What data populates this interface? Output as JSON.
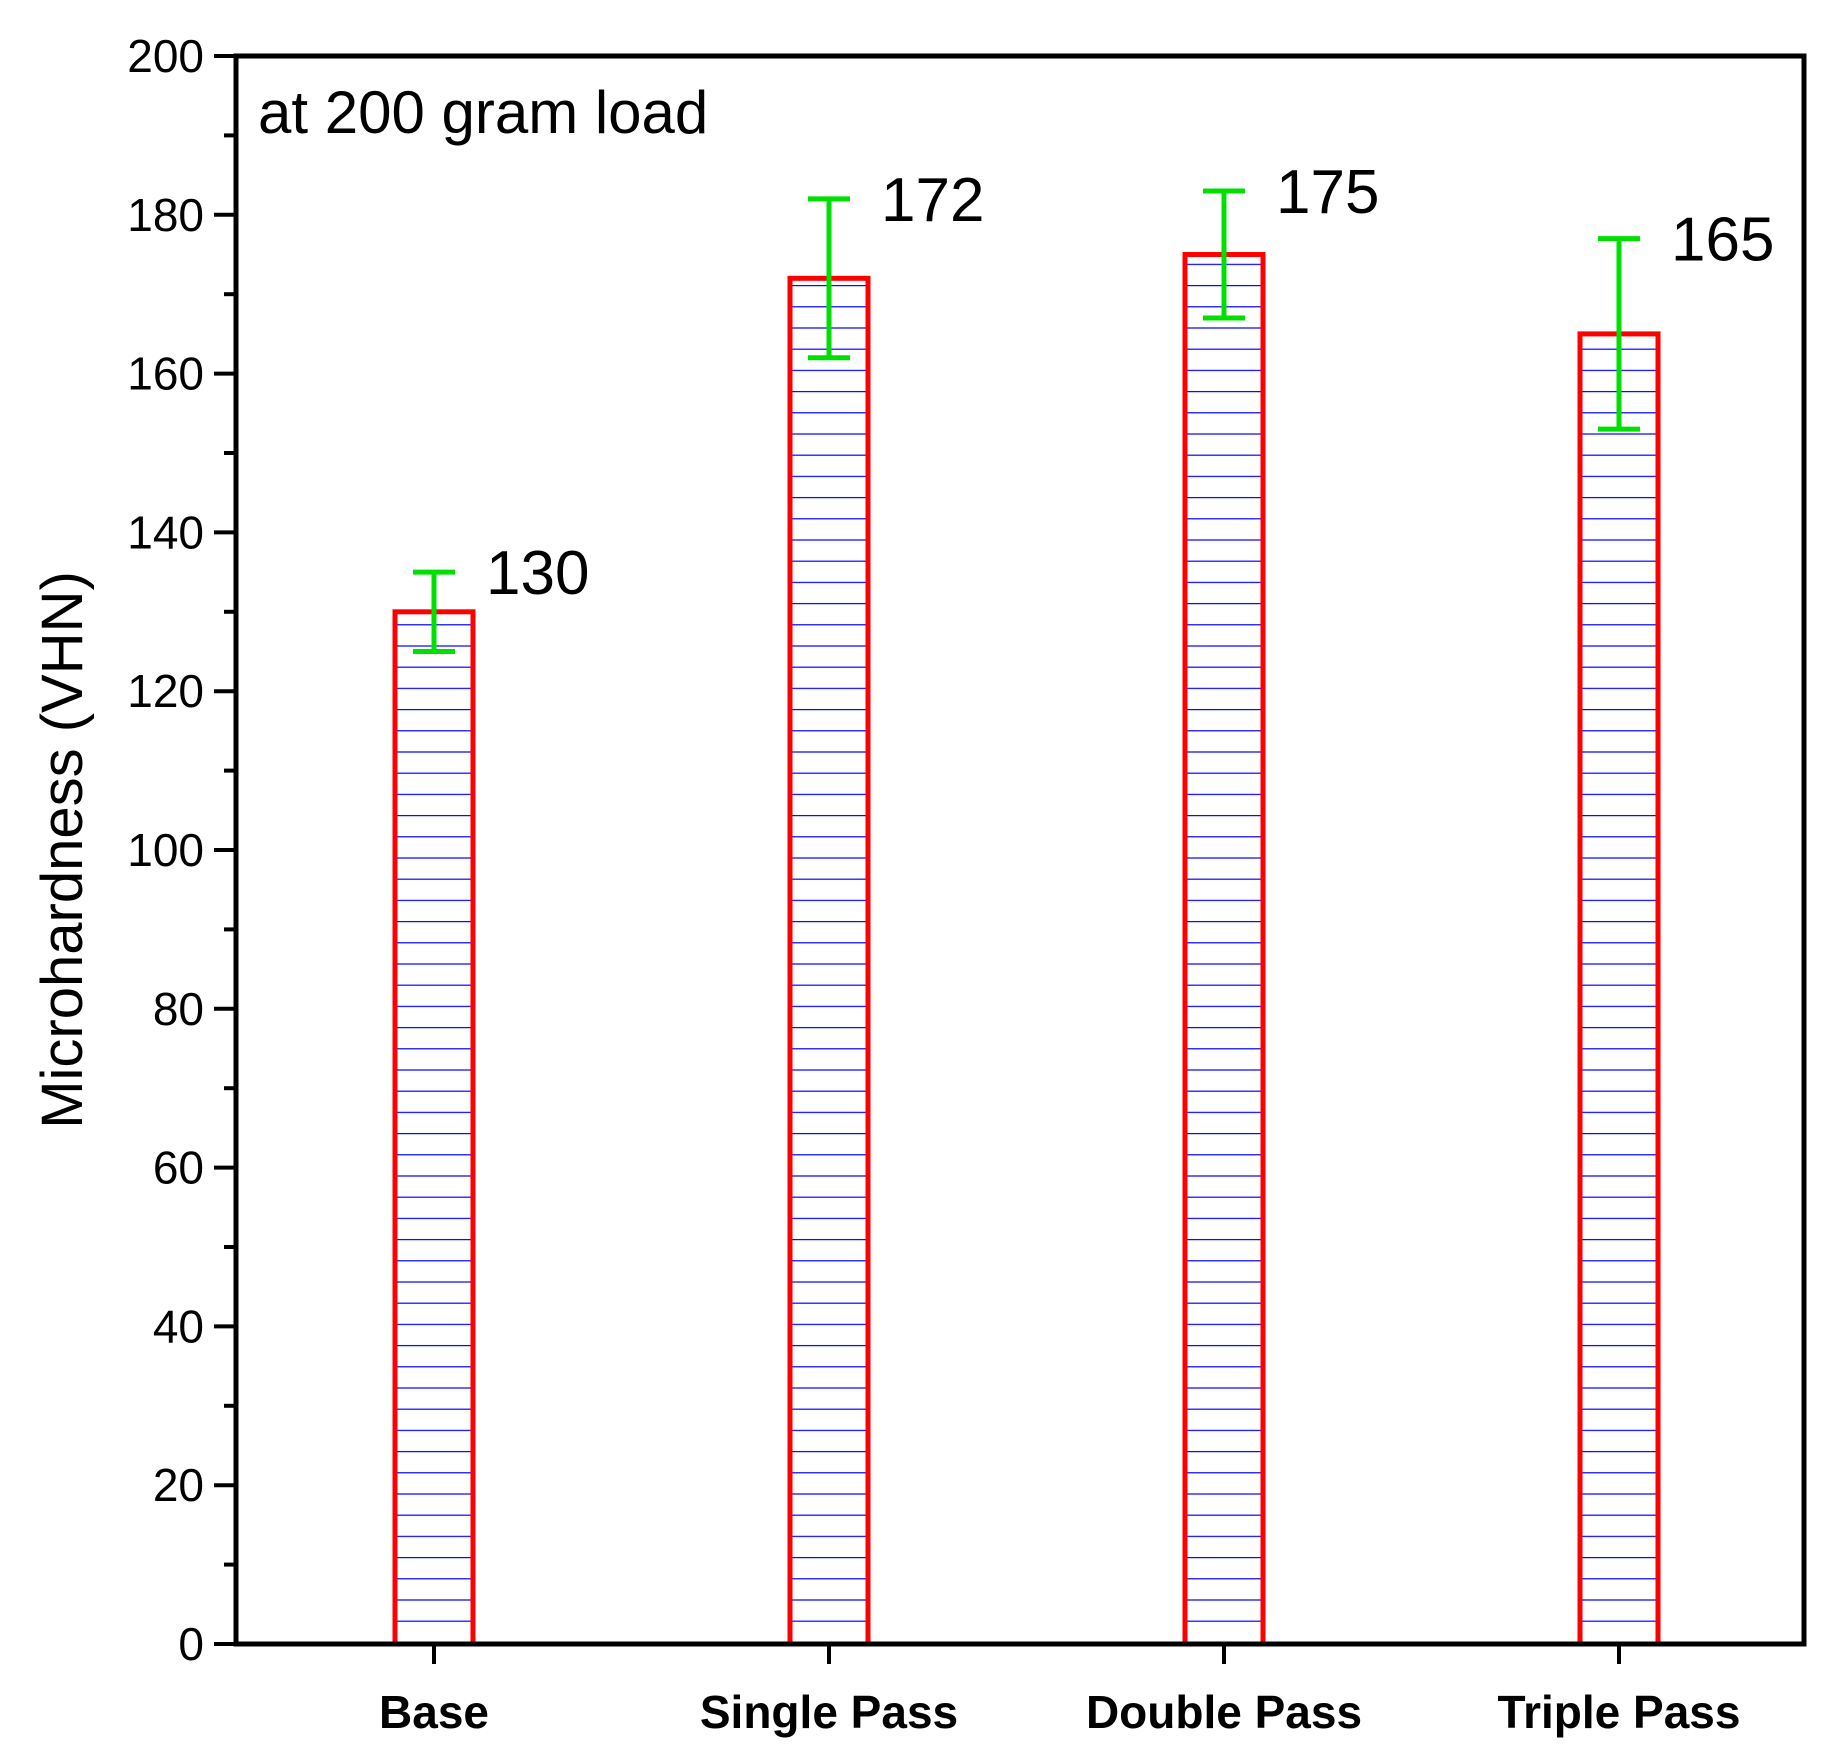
{
  "chart_data": {
    "type": "bar",
    "categories": [
      "Base",
      "Single Pass",
      "Double Pass",
      "Triple Pass"
    ],
    "values": [
      130,
      172,
      175,
      165
    ],
    "errors": [
      5,
      10,
      8,
      12
    ],
    "value_labels": [
      "130",
      "172",
      "175",
      "165"
    ],
    "title": "",
    "annotation": "at 200 gram load",
    "xlabel": "",
    "ylabel": "Microhardness (VHN)",
    "ylim": [
      0,
      200
    ],
    "yticks": [
      0,
      20,
      40,
      60,
      80,
      100,
      120,
      140,
      160,
      180,
      200
    ],
    "grid": false,
    "colors": {
      "bar_edge": "#ff0000",
      "bar_hatch": "#0000ff",
      "error_bar": "#00e000",
      "axis": "#000000"
    }
  }
}
